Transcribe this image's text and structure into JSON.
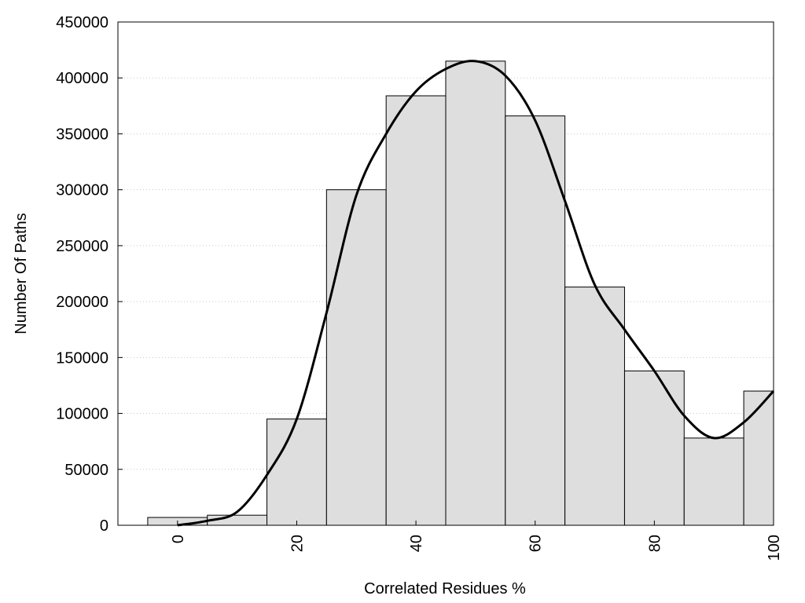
{
  "chart_data": {
    "type": "bar",
    "title": "",
    "xlabel": "Correlated Residues %",
    "ylabel": "Number Of Paths",
    "xlim": [
      -10,
      100
    ],
    "ylim": [
      0,
      450000
    ],
    "grid": true,
    "bar_color": "#dedede",
    "curve_color": "#000000",
    "x_ticks": [
      "0",
      "20",
      "40",
      "60",
      "80",
      "100"
    ],
    "y_ticks": [
      "0",
      "50000",
      "100000",
      "150000",
      "200000",
      "250000",
      "300000",
      "350000",
      "400000",
      "450000"
    ],
    "bins": [
      {
        "start": -5,
        "end": 5,
        "value": 7000
      },
      {
        "start": 5,
        "end": 15,
        "value": 9000
      },
      {
        "start": 15,
        "end": 25,
        "value": 95000
      },
      {
        "start": 25,
        "end": 35,
        "value": 300000
      },
      {
        "start": 35,
        "end": 45,
        "value": 384000
      },
      {
        "start": 45,
        "end": 55,
        "value": 415000
      },
      {
        "start": 55,
        "end": 65,
        "value": 366000
      },
      {
        "start": 65,
        "end": 75,
        "value": 213000
      },
      {
        "start": 75,
        "end": 85,
        "value": 138000
      },
      {
        "start": 85,
        "end": 95,
        "value": 78000
      },
      {
        "start": 95,
        "end": 105,
        "value": 120000
      }
    ],
    "curve": [
      [
        0,
        0
      ],
      [
        5,
        4000
      ],
      [
        10,
        12000
      ],
      [
        15,
        45000
      ],
      [
        20,
        95000
      ],
      [
        25,
        190000
      ],
      [
        30,
        295000
      ],
      [
        35,
        350000
      ],
      [
        40,
        388000
      ],
      [
        45,
        408000
      ],
      [
        50,
        415000
      ],
      [
        55,
        402000
      ],
      [
        60,
        362000
      ],
      [
        65,
        290000
      ],
      [
        70,
        215000
      ],
      [
        75,
        175000
      ],
      [
        80,
        138000
      ],
      [
        85,
        98000
      ],
      [
        90,
        78000
      ],
      [
        95,
        92000
      ],
      [
        100,
        120000
      ]
    ]
  }
}
